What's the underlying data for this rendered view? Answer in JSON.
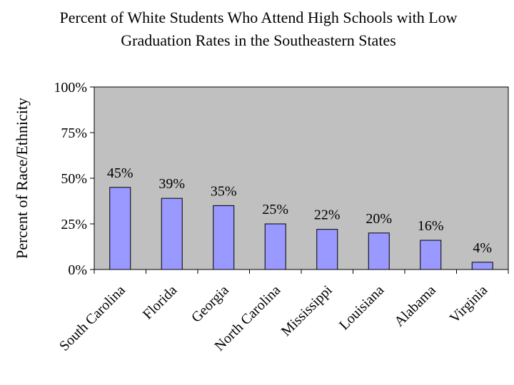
{
  "chart_data": {
    "type": "bar",
    "title_lines": [
      "Percent of White Students Who Attend High Schools with Low",
      "Graduation Rates in the Southeastern States"
    ],
    "xlabel": "",
    "ylabel": "Percent of Race/Ethnicity",
    "categories": [
      "South Carolina",
      "Florida",
      "Georgia",
      "North Carolina",
      "Mississippi",
      "Louisiana",
      "Alabama",
      "Virginia"
    ],
    "values": [
      45,
      39,
      35,
      25,
      22,
      20,
      16,
      4
    ],
    "data_labels": [
      "45%",
      "39%",
      "35%",
      "25%",
      "22%",
      "20%",
      "16%",
      "4%"
    ],
    "ylim": [
      0,
      100
    ],
    "yticks": [
      0,
      25,
      50,
      75,
      100
    ],
    "ytick_labels": [
      "0%",
      "25%",
      "50%",
      "75%",
      "100%"
    ],
    "grid": false,
    "legend": "none",
    "colors": {
      "bar_fill": "#9999FF",
      "plot_background": "#C0C0C0",
      "bar_stroke": "#000000"
    }
  }
}
